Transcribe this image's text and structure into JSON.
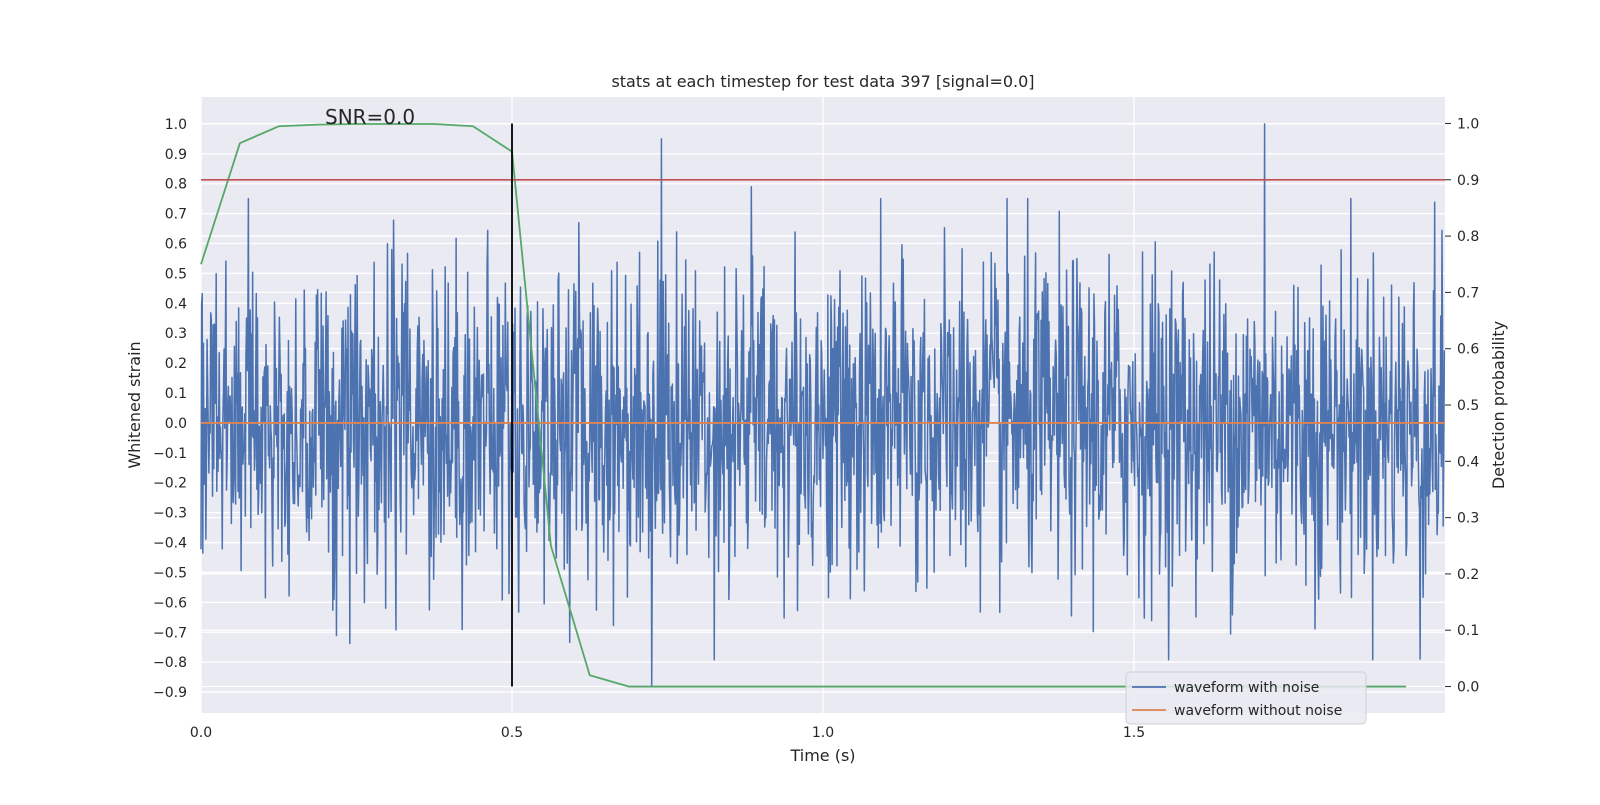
{
  "chart_data": {
    "type": "line",
    "title": "stats at each timestep for test data 397 [signal=0.0]",
    "xlabel": "Time (s)",
    "ylabel_left": "Whitened strain",
    "ylabel_right": "Detection probability",
    "annotation": "SNR=0.0",
    "xlim": [
      0.0,
      2.0
    ],
    "ylim_left": [
      -0.97,
      1.09
    ],
    "ylim_right": [
      -0.047,
      1.047
    ],
    "x_ticks": [
      "0.0",
      "0.5",
      "1.0",
      "1.5"
    ],
    "x_tick_values": [
      0.0,
      0.5,
      1.0,
      1.5
    ],
    "y_ticks_left": [
      "−0.9",
      "−0.8",
      "−0.7",
      "−0.6",
      "−0.5",
      "−0.4",
      "−0.3",
      "−0.2",
      "−0.1",
      "0.0",
      "0.1",
      "0.2",
      "0.3",
      "0.4",
      "0.5",
      "0.6",
      "0.7",
      "0.8",
      "0.9",
      "1.0"
    ],
    "y_tick_values_left": [
      -0.9,
      -0.8,
      -0.7,
      -0.6,
      -0.5,
      -0.4,
      -0.3,
      -0.2,
      -0.1,
      0.0,
      0.1,
      0.2,
      0.3,
      0.4,
      0.5,
      0.6,
      0.7,
      0.8,
      0.9,
      1.0
    ],
    "y_ticks_right": [
      "0.0",
      "0.1",
      "0.2",
      "0.3",
      "0.4",
      "0.5",
      "0.6",
      "0.7",
      "0.8",
      "0.9",
      "1.0"
    ],
    "y_tick_values_right": [
      0.0,
      0.1,
      0.2,
      0.3,
      0.4,
      0.5,
      0.6,
      0.7,
      0.8,
      0.9,
      1.0
    ],
    "grid": true,
    "legend_position": "lower right",
    "series": [
      {
        "name": "waveform with noise",
        "axis": "left",
        "color": "#4c72b0",
        "kind": "noise",
        "sample_rate_hz": 1024,
        "duration_s": 2.0,
        "amplitude_std": 0.27,
        "min": -0.88,
        "max": 1.0,
        "peaks": [
          [
            0.74,
            0.95
          ],
          [
            0.885,
            0.79
          ],
          [
            1.71,
            1.0
          ],
          [
            0.725,
            -0.88
          ],
          [
            1.96,
            -0.79
          ]
        ]
      },
      {
        "name": "waveform without noise",
        "axis": "left",
        "color": "#dd8452",
        "x": [
          0.0,
          2.0
        ],
        "y": [
          0.0,
          0.0
        ]
      },
      {
        "name": "",
        "axis": "right",
        "color": "#55a868",
        "x": [
          0.0,
          0.0625,
          0.125,
          0.1875,
          0.25,
          0.3125,
          0.375,
          0.4375,
          0.5,
          0.5625,
          0.625,
          0.6875,
          0.75,
          1.0,
          1.25,
          1.5,
          1.75,
          1.9375
        ],
        "y": [
          0.75,
          0.965,
          0.995,
          0.998,
          0.999,
          0.999,
          0.999,
          0.995,
          0.95,
          0.25,
          0.02,
          0.0,
          0.0,
          0.0,
          0.0,
          0.0,
          0.0,
          0.0
        ]
      },
      {
        "name": "",
        "axis": "right",
        "color": "#c44e52",
        "kind": "threshold",
        "x": [
          0.0,
          2.0
        ],
        "y": [
          0.9,
          0.9
        ]
      },
      {
        "name": "",
        "axis": "right",
        "color": "#000000",
        "kind": "marker",
        "x": [
          0.5,
          0.5
        ],
        "y": [
          0.0,
          1.0
        ]
      }
    ]
  }
}
